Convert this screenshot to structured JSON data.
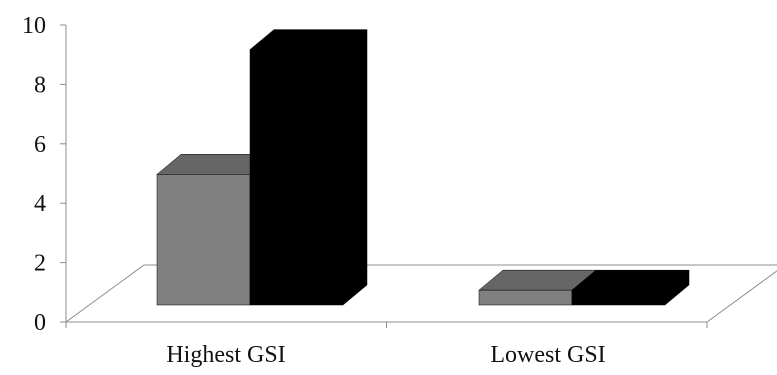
{
  "chart_data": {
    "type": "bar",
    "categories": [
      "Highest GSI",
      "Lowest GSI"
    ],
    "series": [
      {
        "values": [
          4.4,
          0.5
        ],
        "color": "#808080"
      },
      {
        "values": [
          8.6,
          0.5
        ],
        "color": "#000000"
      }
    ],
    "title": "",
    "xlabel": "",
    "ylabel": "",
    "ylim": [
      0,
      10
    ],
    "yticks": [
      "0",
      "2",
      "4",
      "6",
      "8",
      "10"
    ],
    "three_d": true,
    "grid": false,
    "legend": "none"
  }
}
